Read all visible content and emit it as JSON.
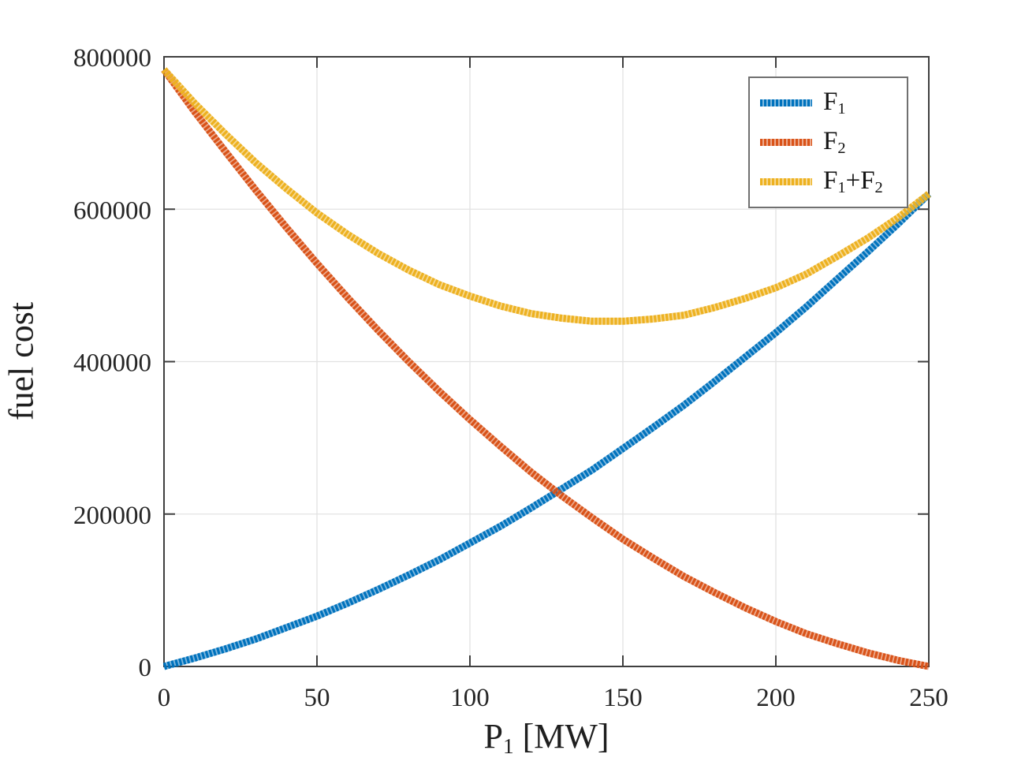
{
  "figure": {
    "background": "#ffffff",
    "axes_box_color": "#3f3f3f",
    "grid_color": "#e2e2e2",
    "tick_label_color": "#262626",
    "axis_label_color": "#1f1f1f",
    "legend_border_color": "#707070"
  },
  "chart_data": {
    "type": "line",
    "title": "",
    "xlabel": "P_1 [MW]",
    "ylabel": "fuel cost",
    "xlim": [
      0,
      250
    ],
    "ylim": [
      0,
      800000
    ],
    "xticks": [
      0,
      50,
      100,
      150,
      200,
      250
    ],
    "yticks": [
      0,
      200000,
      400000,
      600000,
      800000
    ],
    "grid": true,
    "legend_position": "top-right",
    "line_style": "dense-dotted-thick",
    "x": [
      0,
      10,
      20,
      30,
      40,
      50,
      60,
      70,
      80,
      90,
      100,
      110,
      120,
      130,
      140,
      150,
      160,
      170,
      180,
      190,
      200,
      210,
      220,
      230,
      240,
      250
    ],
    "series": [
      {
        "name": "F_1",
        "color": "#0072BD",
        "values": [
          0,
          11000,
          23000,
          36000,
          51000,
          66000,
          83000,
          101000,
          120000,
          140000,
          162000,
          184000,
          208000,
          233000,
          258000,
          286000,
          314000,
          343000,
          374000,
          406000,
          438000,
          472000,
          508000,
          544000,
          581000,
          620000
        ]
      },
      {
        "name": "F_2",
        "color": "#D95319",
        "values": [
          783000,
          728000,
          676000,
          625000,
          576000,
          529000,
          484000,
          441000,
          400000,
          361000,
          324000,
          289000,
          255000,
          224000,
          195000,
          167000,
          142000,
          118000,
          97000,
          77000,
          59000,
          43000,
          30000,
          18000,
          8000,
          0
        ]
      },
      {
        "name": "F_1+F_2",
        "color": "#EDB120",
        "values": [
          783000,
          739000,
          699000,
          661000,
          627000,
          595000,
          567000,
          542000,
          520000,
          501000,
          486000,
          473000,
          463000,
          457000,
          453000,
          453000,
          456000,
          461000,
          471000,
          483000,
          497000,
          515000,
          538000,
          562000,
          589000,
          620000
        ]
      }
    ]
  }
}
